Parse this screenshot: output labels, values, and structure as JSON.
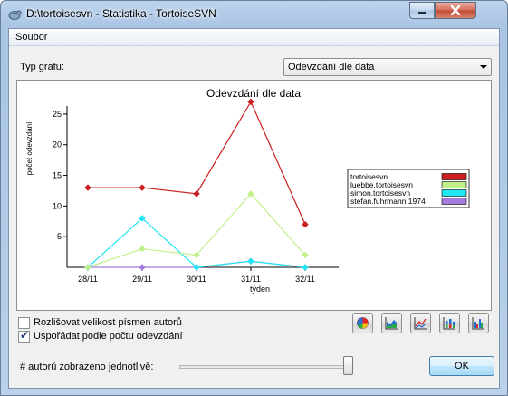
{
  "window": {
    "title": "D:\\tortoisesvn - Statistika - TortoiseSVN"
  },
  "menu": {
    "items": [
      "Soubor"
    ]
  },
  "graph_type": {
    "label": "Typ grafu:",
    "selected": "Odevzdání dle data"
  },
  "chart_data": {
    "type": "line",
    "title": "Odevzdání dle data",
    "xlabel": "týden",
    "ylabel": "počet odevzdání",
    "categories": [
      "28/11",
      "29/11",
      "30/11",
      "31/11",
      "32/11"
    ],
    "yticks": [
      5,
      10,
      15,
      20,
      25
    ],
    "ylim": [
      0,
      27.5
    ],
    "grid": false,
    "legend_position": "right",
    "series": [
      {
        "name": "tortoisesvn",
        "color": "#cc1f1f",
        "values": [
          13,
          13,
          12,
          27,
          7
        ]
      },
      {
        "name": "luebbe.tortoisesvn",
        "color": "#c0f08a",
        "values": [
          0,
          3,
          2,
          12,
          2
        ]
      },
      {
        "name": "simon.tortoisesvn",
        "color": "#22e6f2",
        "values": [
          0,
          8,
          0,
          1,
          0
        ]
      },
      {
        "name": "stefan.fuhrmann.1974",
        "color": "#a47bdc",
        "values": [
          0,
          0,
          0,
          1,
          0
        ]
      }
    ]
  },
  "options": {
    "case_sensitive_label": "Rozlišovat velikost písmen autorů",
    "case_sensitive_checked": false,
    "sort_by_commits_label": "Uspořádat podle počtu odevzdání",
    "sort_by_commits_checked": true
  },
  "chart_type_buttons": [
    "pie-chart-icon",
    "area-chart-icon",
    "line-chart-icon",
    "stacked-bar-icon",
    "bar-chart-icon"
  ],
  "authors_slider": {
    "label": "# autorů zobrazeno jednotlivě:",
    "value_fraction": 1.0
  },
  "ok_button": {
    "label": "OK"
  }
}
